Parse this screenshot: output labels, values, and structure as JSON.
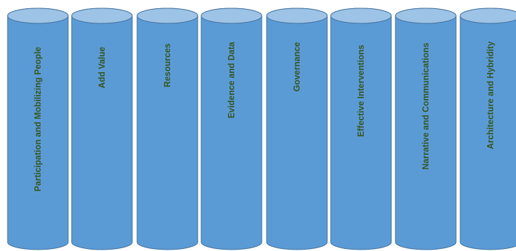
{
  "colors": {
    "body_fill": "#5b9bd5",
    "top_fill": "#9dc3e6",
    "outline": "#41719c",
    "label_text": "#375623"
  },
  "pillars": [
    {
      "label": "Participation and Mobilizing People"
    },
    {
      "label": "Add Value"
    },
    {
      "label": "Resources"
    },
    {
      "label": "Evidence and Data"
    },
    {
      "label": "Governance"
    },
    {
      "label": "Effective Interventions"
    },
    {
      "label": "Narrative and Communications"
    },
    {
      "label": "Architecture and Hybridity"
    }
  ]
}
